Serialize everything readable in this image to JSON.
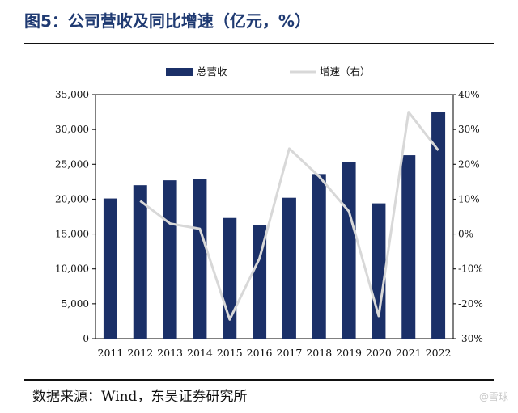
{
  "title": "图5：公司营收及同比增速（亿元，%）",
  "source": "数据来源：Wind，东吴证券研究所",
  "watermark": "@雪球",
  "colors": {
    "bar": "#1b3068",
    "line": "#d8d8d8",
    "title": "#1f3a72"
  },
  "chart_data": {
    "type": "bar",
    "title": "图5：公司营收及同比增速（亿元，%）",
    "categories": [
      "2011",
      "2012",
      "2013",
      "2014",
      "2015",
      "2016",
      "2017",
      "2018",
      "2019",
      "2020",
      "2021",
      "2022"
    ],
    "series": [
      {
        "name": "总营收",
        "type": "bar",
        "axis": "left",
        "values": [
          20100,
          22000,
          22700,
          22900,
          17300,
          16300,
          20200,
          23600,
          25300,
          19400,
          26300,
          32500
        ]
      },
      {
        "name": "增速（右）",
        "type": "line",
        "axis": "right",
        "values": [
          null,
          9.5,
          3.0,
          1.5,
          -24.5,
          -7.0,
          24.5,
          16.5,
          6.5,
          -23.5,
          35.0,
          24.0
        ]
      }
    ],
    "y_left": {
      "min": 0,
      "max": 35000,
      "ticks": [
        "0",
        "5,000",
        "10,000",
        "15,000",
        "20,000",
        "25,000",
        "30,000",
        "35,000"
      ]
    },
    "y_right": {
      "min": -30,
      "max": 40,
      "ticks": [
        "-30%",
        "-20%",
        "-10%",
        "0%",
        "10%",
        "20%",
        "30%",
        "40%"
      ]
    },
    "legend_position": "top-center",
    "grid": false
  }
}
